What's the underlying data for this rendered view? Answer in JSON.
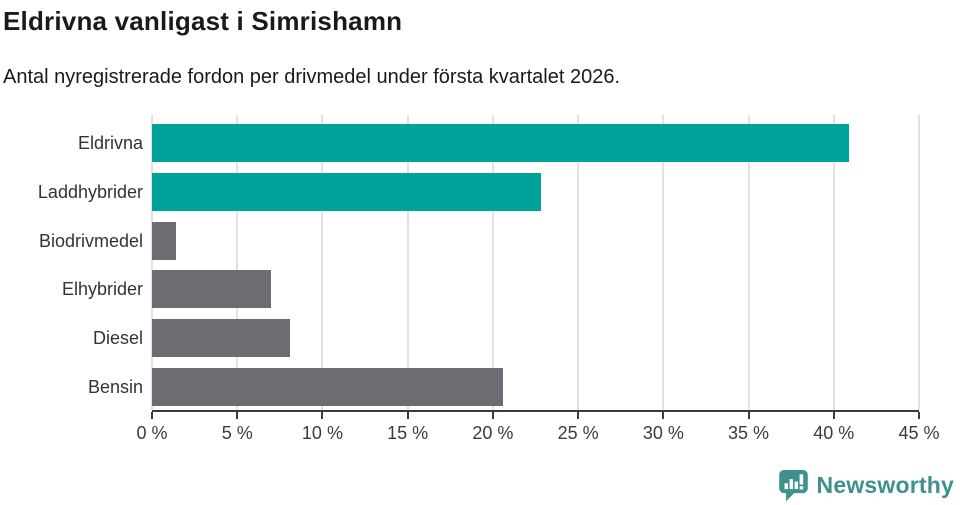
{
  "header": {
    "title": "Eldrivna vanligast i Simrishamn",
    "subtitle": "Antal nyregistrerade fordon per drivmedel under första kvartalet 2026."
  },
  "chart_data": {
    "type": "bar",
    "orientation": "horizontal",
    "title": "Eldrivna vanligast i Simrishamn",
    "subtitle": "Antal nyregistrerade fordon per drivmedel under första kvartalet 2026.",
    "categories": [
      "Eldrivna",
      "Laddhybrider",
      "Biodrivmedel",
      "Elhybrider",
      "Diesel",
      "Bensin"
    ],
    "values": [
      40.9,
      22.8,
      1.4,
      7.0,
      8.1,
      20.6
    ],
    "unit": "%",
    "bar_colors": [
      "#00a39a",
      "#00a39a",
      "#6c6c72",
      "#6c6c72",
      "#6c6c72",
      "#6c6c72"
    ],
    "highlight_color": "#00a39a",
    "default_color": "#6c6c72",
    "xlim": [
      0,
      45
    ],
    "x_ticks": [
      0,
      5,
      10,
      15,
      20,
      25,
      30,
      35,
      40,
      45
    ],
    "x_tick_labels": [
      "0 %",
      "5 %",
      "10 %",
      "15 %",
      "20 %",
      "25 %",
      "30 %",
      "35 %",
      "40 %",
      "45 %"
    ],
    "xlabel": "",
    "ylabel": "",
    "grid": true,
    "gridline_color": "#e2e2e2",
    "axis_color": "#3c3c3c",
    "legend": "none"
  },
  "footer": {
    "logo_text": "Newsworthy",
    "logo_color": "#3f918e"
  }
}
